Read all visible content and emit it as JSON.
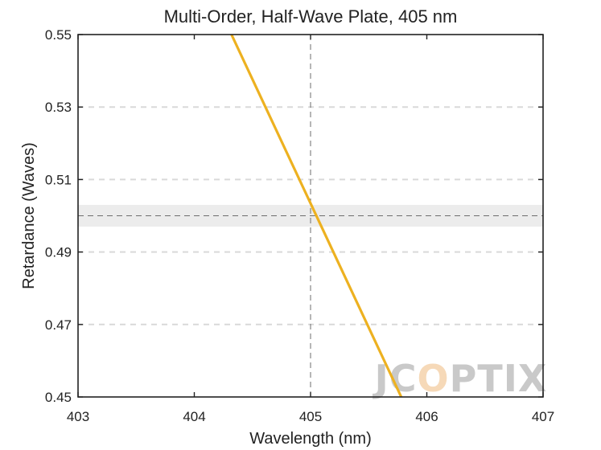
{
  "chart_data": {
    "type": "line",
    "title": "Multi-Order, Half-Wave Plate, 405 nm",
    "xlabel": "Wavelength (nm)",
    "ylabel": "Retardance (Waves)",
    "xlim": [
      403,
      407
    ],
    "ylim": [
      0.45,
      0.55
    ],
    "xticks": [
      403,
      404,
      405,
      406,
      407
    ],
    "yticks": [
      0.45,
      0.47,
      0.49,
      0.51,
      0.53,
      0.55
    ],
    "ytick_labels": [
      "0.45",
      "0.47",
      "0.49",
      "0.51",
      "0.53",
      "0.55"
    ],
    "grid": "horizontal dashed",
    "series": [
      {
        "x": [
          404.32,
          405.78
        ],
        "y": [
          0.55,
          0.45
        ],
        "color": "#EDB120"
      }
    ],
    "reference_lines": {
      "vertical_x": 405,
      "horizontal_y": 0.5,
      "tolerance_band": [
        0.497,
        0.503
      ]
    },
    "colors": {
      "line": "#EDB120",
      "band": "#ececec",
      "grid": "#d9d9d9",
      "reference": "#6e6e6e"
    }
  },
  "watermark": {
    "text": "JCOPTIX",
    "color": "#c9c9c9",
    "accent_color": "#f6d9b8"
  }
}
